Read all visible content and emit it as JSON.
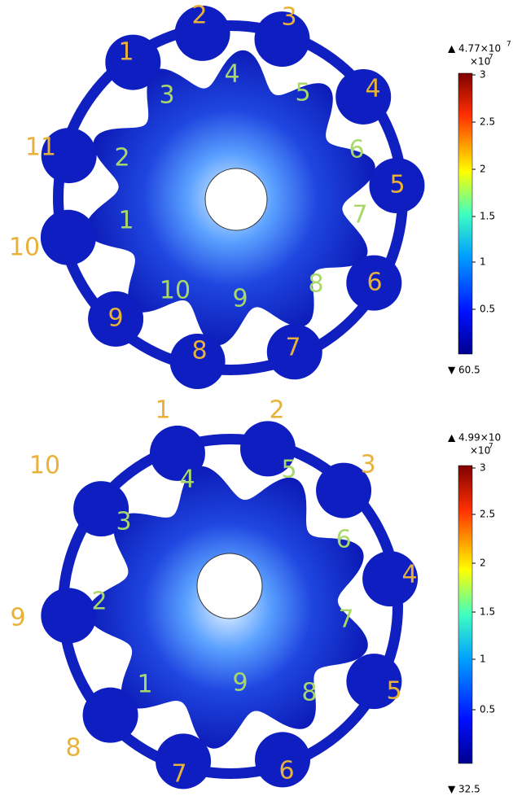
{
  "panels": [
    {
      "outer_labels": [
        "1",
        "2",
        "3",
        "4",
        "5",
        "6",
        "7",
        "8",
        "9",
        "10",
        "11"
      ],
      "inner_labels": [
        "1",
        "2",
        "3",
        "4",
        "5",
        "6",
        "7",
        "8",
        "9",
        "10"
      ],
      "colorbar": {
        "max_label": "▲ 4.77×10",
        "max_exponent": "7",
        "multiplier": "×10",
        "multiplier_exponent": "7",
        "ticks": [
          "3",
          "2.5",
          "2",
          "1.5",
          "1",
          "0.5"
        ],
        "min_label": "▼ 60.5"
      }
    },
    {
      "outer_labels": [
        "1",
        "2",
        "3",
        "4",
        "5",
        "6",
        "7",
        "8",
        "9",
        "10"
      ],
      "inner_labels": [
        "1",
        "2",
        "3",
        "4",
        "5",
        "6",
        "7",
        "8",
        "9"
      ],
      "colorbar": {
        "max_label": "▲ 4.99×10",
        "multiplier": "×10",
        "multiplier_exponent": "7",
        "ticks": [
          "3",
          "2.5",
          "2",
          "1.5",
          "1",
          "0.5"
        ],
        "min_label": "▼ 32.5"
      }
    }
  ]
}
